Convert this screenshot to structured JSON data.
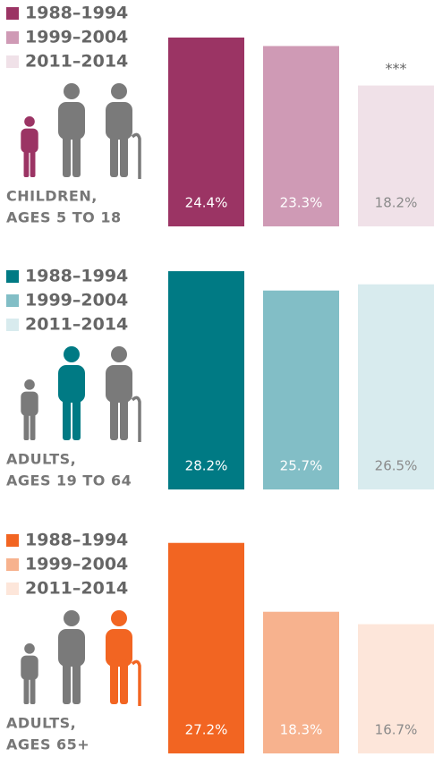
{
  "chart_data": [
    {
      "type": "bar",
      "title": [
        "CHILDREN,",
        "AGES 5 TO 18"
      ],
      "categories": [
        "1988–1994",
        "1999–2004",
        "2011–2014"
      ],
      "values": [
        24.4,
        23.3,
        18.2
      ],
      "value_labels": [
        "24.4%",
        "23.3%",
        "18.2%"
      ],
      "colors": [
        "#9b3464",
        "#cf9ab5",
        "#f0e1e8"
      ],
      "annotation": "***"
    },
    {
      "type": "bar",
      "title": [
        "ADULTS,",
        "AGES 19 TO 64"
      ],
      "categories": [
        "1988–1994",
        "1999–2004",
        "2011–2014"
      ],
      "values": [
        28.2,
        25.7,
        26.5
      ],
      "value_labels": [
        "28.2%",
        "25.7%",
        "26.5%"
      ],
      "colors": [
        "#007a84",
        "#82bec6",
        "#d8ebee"
      ]
    },
    {
      "type": "bar",
      "title": [
        "ADULTS,",
        "AGES 65+"
      ],
      "categories": [
        "1988–1994",
        "1999–2004",
        "2011–2014"
      ],
      "values": [
        27.2,
        18.3,
        16.7
      ],
      "value_labels": [
        "27.2%",
        "18.3%",
        "16.7%"
      ],
      "colors": [
        "#f26522",
        "#f7b28e",
        "#fde6da"
      ]
    }
  ]
}
